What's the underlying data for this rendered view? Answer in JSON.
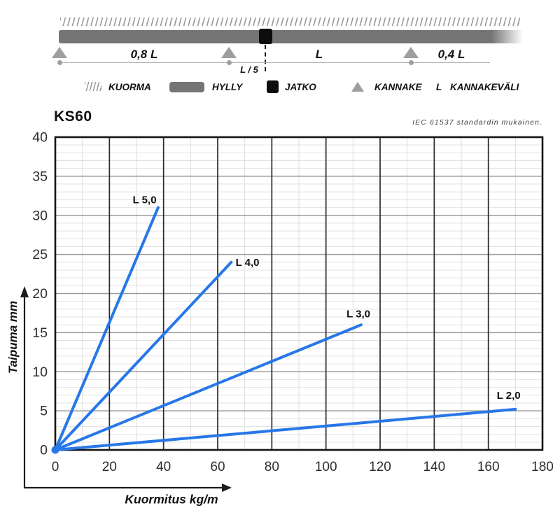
{
  "diagram": {
    "labels": {
      "span_left": "0,8 L",
      "joint": "L / 5",
      "span_mid": "L",
      "span_right": "0,4 L"
    },
    "legend": [
      {
        "label": "KUORMA"
      },
      {
        "label": "HYLLY"
      },
      {
        "label": "JATKO"
      },
      {
        "label": "KANNAKE"
      },
      {
        "symbol": "L",
        "label": "KANNAKEVÄLI"
      }
    ],
    "colors": {
      "shelf": "#757575",
      "support": "#9e9e9e",
      "joint": "#0d0d0d",
      "hatch": "#9a9a9a"
    }
  },
  "chart_data": {
    "type": "line",
    "title": "KS60",
    "note": "IEC 61537 standardin mukainen.",
    "xlabel": "Kuormitus kg/m",
    "ylabel": "Taipuma mm",
    "xlim": [
      0,
      180
    ],
    "ylim": [
      0,
      40
    ],
    "xticks": [
      0,
      20,
      40,
      60,
      80,
      100,
      120,
      140,
      160,
      180
    ],
    "yticks": [
      0,
      5,
      10,
      15,
      20,
      25,
      30,
      35,
      40
    ],
    "x_minor_step": 10,
    "y_minor_step": 1,
    "grid": "major+minor",
    "legend_position": "inline-labels",
    "line_color": "#2777e8",
    "series": [
      {
        "name": "L 5,0",
        "x": [
          0,
          38
        ],
        "y": [
          0,
          31
        ],
        "label_at": [
          33,
          32
        ]
      },
      {
        "name": "L 4,0",
        "x": [
          0,
          65
        ],
        "y": [
          0,
          24
        ],
        "label_at": [
          71,
          24
        ]
      },
      {
        "name": "L 3,0",
        "x": [
          0,
          113
        ],
        "y": [
          0,
          16
        ],
        "label_at": [
          112,
          17.4
        ]
      },
      {
        "name": "L 2,0",
        "x": [
          0,
          170
        ],
        "y": [
          0,
          5.2
        ],
        "label_at": [
          167.5,
          7
        ]
      }
    ]
  }
}
